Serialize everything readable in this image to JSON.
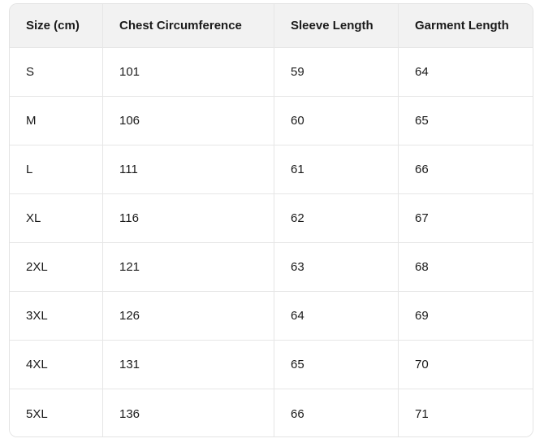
{
  "chart_data": {
    "type": "table",
    "columns": [
      "Size (cm)",
      "Chest Circumference",
      "Sleeve Length",
      "Garment Length"
    ],
    "rows": [
      [
        "S",
        "101",
        "59",
        "64"
      ],
      [
        "M",
        "106",
        "60",
        "65"
      ],
      [
        "L",
        "111",
        "61",
        "66"
      ],
      [
        "XL",
        "116",
        "62",
        "67"
      ],
      [
        "2XL",
        "121",
        "63",
        "68"
      ],
      [
        "3XL",
        "126",
        "64",
        "69"
      ],
      [
        "4XL",
        "131",
        "65",
        "70"
      ],
      [
        "5XL",
        "136",
        "66",
        "71"
      ]
    ]
  },
  "styles": {
    "header_bg": "#f2f2f2",
    "border_color": "#e6e6e6",
    "outer_border": "#e3e3e3",
    "text_color": "#1a1a1a",
    "row_bg": "#ffffff",
    "page_bg": "#ffffff"
  }
}
